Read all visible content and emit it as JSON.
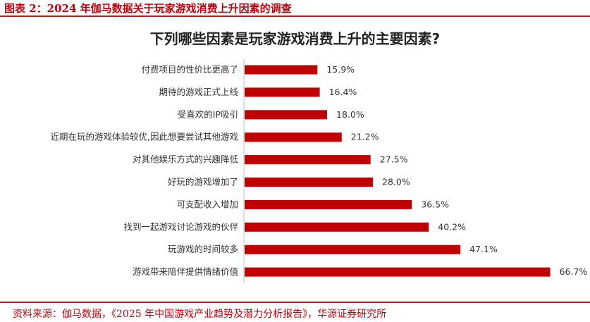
{
  "figure": {
    "title": "图表 2：2024 年伽马数据关于玩家游戏消费上升因素的调查",
    "source": "资料来源：伽马数据，《2025 年中国游戏产业趋势及潜力分析报告》，华源证券研究所"
  },
  "colors": {
    "bar": "#c00000",
    "accent": "#b71c1c"
  },
  "chart_data": {
    "type": "bar",
    "orientation": "horizontal",
    "title": "下列哪些因素是玩家游戏消费上升的主要因素?",
    "categories": [
      "付费项目的性价比更高了",
      "期待的游戏正式上线",
      "受喜欢的IP吸引",
      "近期在玩的游戏体验较优,因此想要尝试其他游戏",
      "对其他娱乐方式的兴趣降低",
      "好玩的游戏增加了",
      "可支配收入增加",
      "找到一起游戏讨论游戏的伙伴",
      "玩游戏的时间较多",
      "游戏带来陪伴提供情绪价值"
    ],
    "values": [
      15.9,
      16.4,
      18.0,
      21.2,
      27.5,
      28.0,
      36.5,
      40.2,
      47.1,
      66.7
    ],
    "value_labels": [
      "15.9%",
      "16.4%",
      "18.0%",
      "21.2%",
      "27.5%",
      "28.0%",
      "36.5%",
      "40.2%",
      "47.1%",
      "66.7%"
    ],
    "unit": "%",
    "xlim": [
      0,
      70
    ],
    "grid": false,
    "legend": "none"
  }
}
